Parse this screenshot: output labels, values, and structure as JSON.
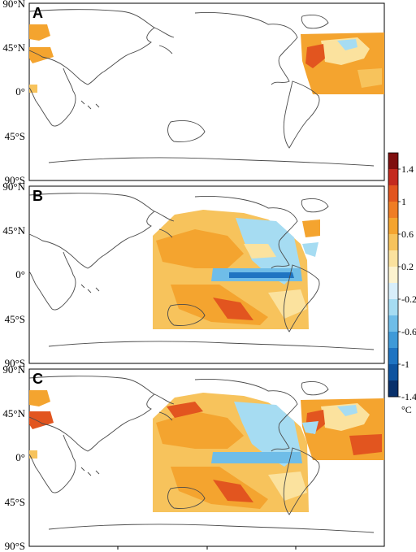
{
  "panels": [
    {
      "letter": "A",
      "lat_labels": [
        "90°N",
        "45°N",
        "0°",
        "45°S",
        "90°S"
      ]
    },
    {
      "letter": "B",
      "lat_labels": [
        "90°N",
        "45°N",
        "0°",
        "45°S",
        "90°S"
      ]
    },
    {
      "letter": "C",
      "lat_labels": [
        "90°N",
        "45°N",
        "0°",
        "45°S",
        "90°S"
      ]
    }
  ],
  "colorbar": {
    "labels": [
      "1.4",
      "1",
      "0.6",
      "0.2",
      "-0.2",
      "-0.6",
      "-1",
      "-1.4"
    ],
    "unit": "°C",
    "colors": [
      "#7f0f0f",
      "#c42a1e",
      "#e2551f",
      "#ef7d25",
      "#f4a42f",
      "#f7c35c",
      "#fbe29e",
      "#fdf3cf",
      "#d8eefa",
      "#a6dcf2",
      "#6fbde8",
      "#3f9ad8",
      "#1f74c2",
      "#0e539f",
      "#08306b"
    ]
  },
  "colors": {
    "land_outline": "#4a4a4a",
    "warm_fill": "#f4a42f",
    "light_warm": "#fbe29e",
    "cool_fill": "#a6dcf2",
    "deep_cool": "#3f9ad8",
    "hot": "#e2551f"
  }
}
